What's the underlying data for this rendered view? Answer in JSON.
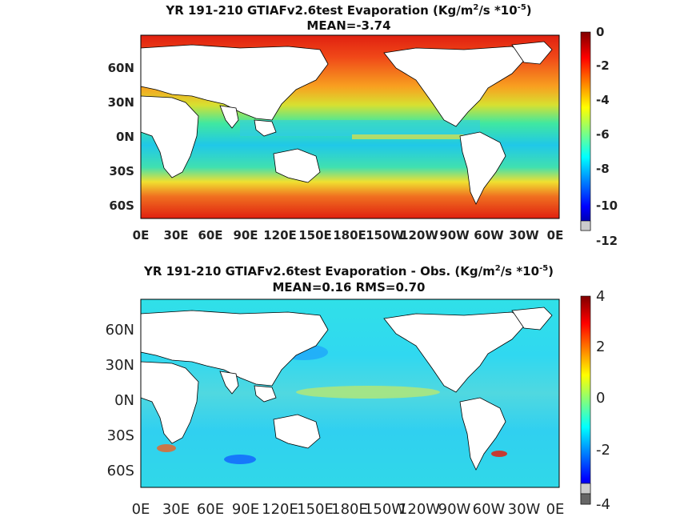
{
  "panels": [
    {
      "title": "YR 191-210 GTIAFv2.6test  Evaporation (Kg/m",
      "title_sup": "2",
      "title_mid": "/s *10",
      "title_sup2": "-5",
      "title_end": ")",
      "subtitle": "MEAN=-3.74"
    },
    {
      "title": "YR 191-210 GTIAFv2.6test Evaporation - Obs. (Kg/m",
      "title_sup": "2",
      "title_mid": "/s *10",
      "title_sup2": "-5",
      "title_end": ")",
      "subtitle": "MEAN=0.16   RMS=0.70"
    }
  ],
  "chart_data": [
    {
      "type": "heatmap",
      "title": "YR 191-210 GTIAFv2.6test  Evaporation (Kg/m^2/s *10^-5)",
      "subtitle": "MEAN=-3.74",
      "xlabel": "",
      "ylabel": "",
      "x_ticks": [
        "0E",
        "30E",
        "60E",
        "90E",
        "120E",
        "150E",
        "180E",
        "150W",
        "120W",
        "90W",
        "60W",
        "30W",
        "0E"
      ],
      "y_ticks": [
        "60N",
        "30N",
        "0N",
        "30S",
        "60S"
      ],
      "colorbar": {
        "ticks": [
          "0",
          "-2",
          "-4",
          "-6",
          "-8",
          "-10",
          "-12"
        ],
        "range": [
          -12,
          0
        ],
        "colormap": "jet"
      },
      "land_color": "#ffffff"
    },
    {
      "type": "heatmap",
      "title": "YR 191-210 GTIAFv2.6test Evaporation - Obs. (Kg/m^2/s *10^-5)",
      "subtitle": "MEAN=0.16   RMS=0.70",
      "xlabel": "",
      "ylabel": "",
      "x_ticks": [
        "0E",
        "30E",
        "60E",
        "90E",
        "120E",
        "150E",
        "180E",
        "150W",
        "120W",
        "90W",
        "60W",
        "30W",
        "0E"
      ],
      "y_ticks": [
        "60N",
        "30N",
        "0N",
        "30S",
        "60S"
      ],
      "colorbar": {
        "ticks": [
          "4",
          "2",
          "0",
          "-2",
          "-4"
        ],
        "range": [
          -4,
          4
        ],
        "colormap": "jet"
      },
      "land_color": "#ffffff"
    }
  ]
}
